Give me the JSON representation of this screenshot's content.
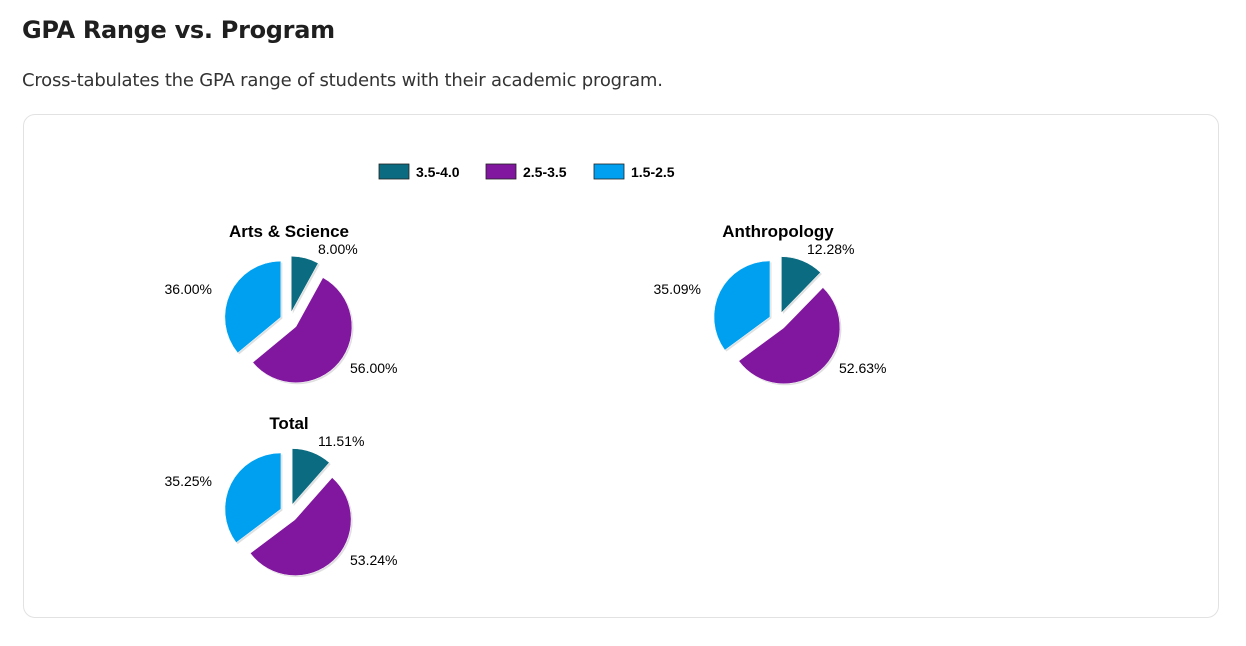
{
  "header": {
    "title": "GPA Range vs. Program",
    "subtitle": "Cross-tabulates the GPA range of students with their academic program."
  },
  "chart_data": {
    "type": "pie",
    "legend_position": "top-center",
    "categories": [
      "3.5-4.0",
      "2.5-3.5",
      "1.5-2.5"
    ],
    "colors": [
      "#0b6b80",
      "#81179f",
      "#00a0f0"
    ],
    "pies": [
      {
        "title": "Arts & Science",
        "values": [
          8.0,
          56.0,
          36.0
        ],
        "labels": [
          "8.00%",
          "56.00%",
          "36.00%"
        ]
      },
      {
        "title": "Anthropology",
        "values": [
          12.28,
          52.63,
          35.09
        ],
        "labels": [
          "12.28%",
          "52.63%",
          "35.09%"
        ]
      },
      {
        "title": "Total",
        "values": [
          11.51,
          53.24,
          35.25
        ],
        "labels": [
          "11.51%",
          "53.24%",
          "35.25%"
        ]
      }
    ]
  }
}
